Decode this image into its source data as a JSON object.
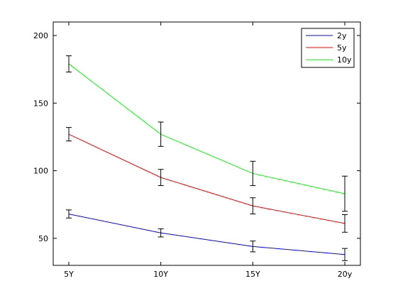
{
  "chart_data": {
    "type": "line",
    "title": "",
    "xlabel": "",
    "ylabel": "",
    "categories": [
      "5Y",
      "10Y",
      "15Y",
      "20y"
    ],
    "ylim": [
      30,
      210
    ],
    "yticks": [
      50,
      100,
      150,
      200
    ],
    "grid": false,
    "legend": "top-right",
    "series": [
      {
        "name": "2y",
        "color": "#0000ff",
        "values": [
          68,
          54,
          44,
          38
        ],
        "error": [
          3,
          3,
          4,
          4.5
        ]
      },
      {
        "name": "5y",
        "color": "#ff0000",
        "values": [
          127,
          95,
          74,
          61
        ],
        "error": [
          5,
          6,
          6,
          6.5
        ]
      },
      {
        "name": "10y",
        "color": "#00ff00",
        "values": [
          179,
          127,
          98,
          83
        ],
        "error": [
          6,
          9,
          9,
          13
        ]
      }
    ]
  }
}
